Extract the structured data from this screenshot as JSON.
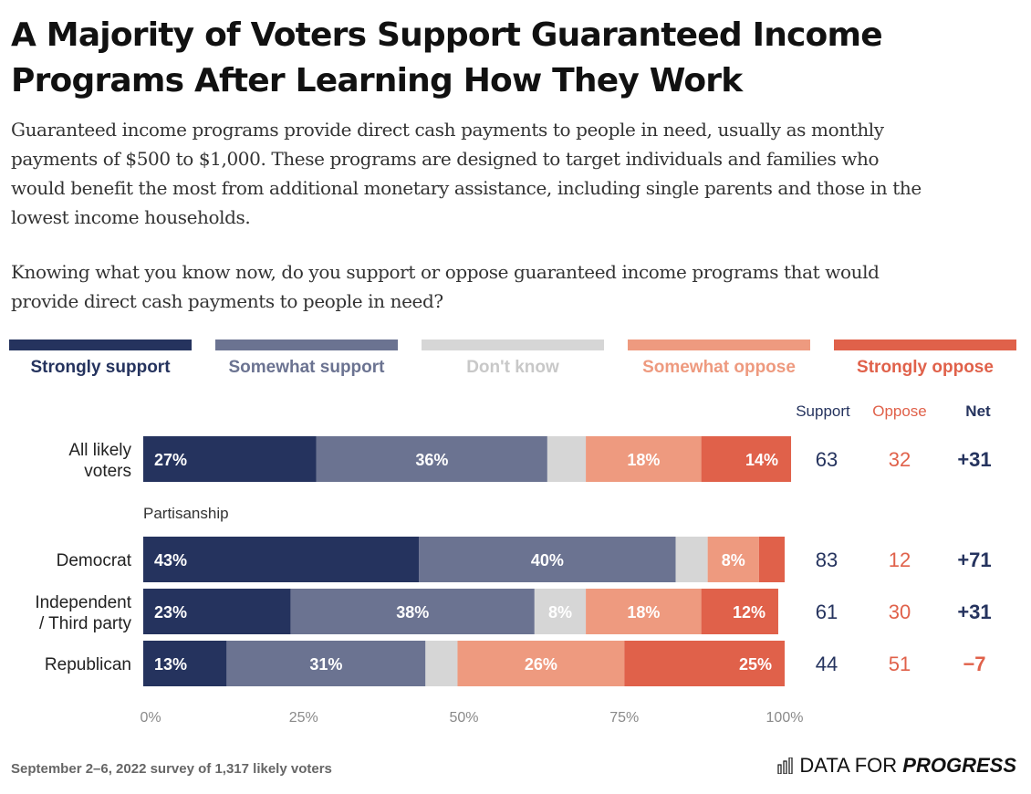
{
  "title": {
    "line1": "A Majority of Voters Support Guaranteed Income",
    "line2": "Programs After Learning How They Work"
  },
  "intro": {
    "line1": "Guaranteed income programs provide direct cash payments to people in need, usually as monthly",
    "line2": "payments of $500 to $1,000. These programs are designed to target individuals and families who",
    "line3": "would benefit the most from additional monetary assistance, including single parents and those in the",
    "line4": "lowest income households."
  },
  "question": {
    "line1": "Knowing what you know now, do you support or oppose guaranteed income programs that would",
    "line2": "provide direct cash payments to people in need?"
  },
  "legend": [
    {
      "label": "Strongly support",
      "color": "#25335e",
      "text_color": "#25335e"
    },
    {
      "label": "Somewhat support",
      "color": "#6b7391",
      "text_color": "#6b7391"
    },
    {
      "label": "Don't know",
      "color": "#d6d6d6",
      "text_color": "#c8c8c8"
    },
    {
      "label": "Somewhat oppose",
      "color": "#ee9a7f",
      "text_color": "#ee9a7f"
    },
    {
      "label": "Strongly oppose",
      "color": "#e0614a",
      "text_color": "#e0614a"
    }
  ],
  "footer": "September 2–6, 2022 survey of 1,317 likely voters",
  "brand": {
    "part1": "DATA FOR",
    "part2": "PROGRESS"
  },
  "chart_data": {
    "type": "bar",
    "orientation": "horizontal",
    "stacked": true,
    "xlim": [
      0,
      100
    ],
    "x_ticks": [
      "0%",
      "25%",
      "50%",
      "75%",
      "100%"
    ],
    "group_label": "Partisanship",
    "column_headers": {
      "support": "Support",
      "oppose": "Oppose",
      "net": "Net"
    },
    "categories": [
      {
        "line1": "All likely",
        "line2": "voters"
      },
      {
        "line1": "Democrat",
        "line2": ""
      },
      {
        "line1": "Independent",
        "line2": "/ Third party"
      },
      {
        "line1": "Republican",
        "line2": ""
      }
    ],
    "series": [
      {
        "name": "Strongly support",
        "values": [
          27,
          43,
          23,
          13
        ],
        "labels": [
          "27%",
          "43%",
          "23%",
          "13%"
        ]
      },
      {
        "name": "Somewhat support",
        "values": [
          36,
          40,
          38,
          31
        ],
        "labels": [
          "36%",
          "40%",
          "38%",
          "31%"
        ]
      },
      {
        "name": "Don't know",
        "values": [
          6,
          5,
          8,
          5
        ],
        "labels": [
          "",
          "",
          "8%",
          ""
        ]
      },
      {
        "name": "Somewhat oppose",
        "values": [
          18,
          8,
          18,
          26
        ],
        "labels": [
          "18%",
          "8%",
          "18%",
          "26%"
        ]
      },
      {
        "name": "Strongly oppose",
        "values": [
          14,
          4,
          12,
          25
        ],
        "labels": [
          "14%",
          "",
          "12%",
          "25%"
        ]
      }
    ],
    "support": [
      "63",
      "83",
      "61",
      "44"
    ],
    "oppose": [
      "32",
      "12",
      "30",
      "51"
    ],
    "net": [
      "+31",
      "+71",
      "+31",
      "−7"
    ],
    "net_colors": [
      "#25335e",
      "#25335e",
      "#25335e",
      "#e0614a"
    ]
  }
}
